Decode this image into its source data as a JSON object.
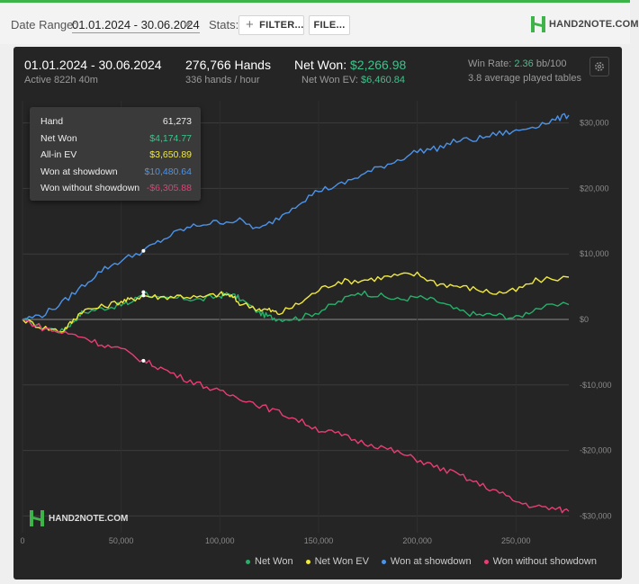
{
  "toolbar": {
    "date_range_label": "Date Range:",
    "date_range_value": "01.01.2024 - 30.06.2024",
    "stats_label": "Stats:",
    "filter_label": "FILTER...",
    "file_label": "FILE...",
    "brand_text": "HAND2NOTE.COM"
  },
  "header": {
    "date": "01.01.2024 - 30.06.2024",
    "active": "Active 822h 40m",
    "hands": "276,766 Hands",
    "hands_per_hour": "336 hands / hour",
    "net_won_label": "Net Won:",
    "net_won_value": "$2,266.98",
    "net_won_ev_label": "Net Won  EV:",
    "net_won_ev_value": "$6,460.84",
    "win_rate_label": "Win Rate:",
    "win_rate_value": "2.36",
    "win_rate_unit": "bb/100",
    "tables": "3.8 average played tables"
  },
  "tooltip": {
    "rows": [
      {
        "label": "Hand",
        "value": "61,273",
        "color": "#eeeeee"
      },
      {
        "label": "Net Won",
        "value": "$4,174.77",
        "color": "#3cc48b"
      },
      {
        "label": "All-in EV",
        "value": "$3,650.89",
        "color": "#f2ea3c"
      },
      {
        "label": "Won at showdown",
        "value": "$10,480.64",
        "color": "#4c93ea"
      },
      {
        "label": "Won without showdown",
        "value": "-$6,305.88",
        "color": "#ea3d74"
      }
    ]
  },
  "watermark": "HAND2NOTE.COM",
  "chart_data": {
    "type": "line",
    "x_label": "",
    "y_label": "",
    "xlim": [
      0,
      276766
    ],
    "ylim": [
      -32000,
      34000
    ],
    "x_ticks": [
      0,
      50000,
      100000,
      150000,
      200000,
      250000
    ],
    "x_tick_labels": [
      "0",
      "50,000",
      "100,000",
      "150,000",
      "200,000",
      "250,000"
    ],
    "y_ticks": [
      30000,
      20000,
      10000,
      0,
      -10000,
      -20000,
      -30000
    ],
    "y_tick_labels": [
      "$30,000",
      "$20,000",
      "$10,000",
      "$0",
      "-$10,000",
      "-$20,000",
      "-$30,000"
    ],
    "grid": true,
    "legend_position": "bottom",
    "marker_hand": 61273,
    "series": [
      {
        "name": "Net Won",
        "color": "#27b06a",
        "x": [
          0,
          10000,
          20000,
          25000,
          30000,
          40000,
          50000,
          55000,
          61273,
          70000,
          80000,
          90000,
          100000,
          105000,
          110000,
          120000,
          125000,
          130000,
          140000,
          150000,
          160000,
          170000,
          180000,
          190000,
          200000,
          210000,
          220000,
          230000,
          240000,
          250000,
          260000,
          276766
        ],
        "y": [
          0,
          -1200,
          -1800,
          -500,
          1000,
          1700,
          2200,
          2600,
          4175,
          3000,
          3300,
          3000,
          3600,
          3900,
          3200,
          1000,
          400,
          100,
          200,
          1200,
          2600,
          4200,
          3700,
          3000,
          3400,
          2800,
          1400,
          700,
          700,
          200,
          1700,
          2267
        ]
      },
      {
        "name": "Net Won  EV",
        "color": "#f2ea3c",
        "x": [
          0,
          10000,
          20000,
          25000,
          30000,
          40000,
          50000,
          55000,
          61273,
          70000,
          80000,
          90000,
          100000,
          105000,
          110000,
          120000,
          125000,
          130000,
          140000,
          150000,
          160000,
          170000,
          180000,
          190000,
          200000,
          210000,
          220000,
          230000,
          240000,
          250000,
          260000,
          276766
        ],
        "y": [
          0,
          -1200,
          -1800,
          -400,
          1300,
          1900,
          2800,
          3000,
          3651,
          3400,
          3600,
          3300,
          3900,
          3700,
          2500,
          1600,
          1400,
          900,
          2400,
          4500,
          5800,
          5900,
          6300,
          6700,
          6900,
          5500,
          5100,
          4600,
          4000,
          4400,
          5900,
          6461
        ]
      },
      {
        "name": "Won at showdown",
        "color": "#4c93ea",
        "x": [
          0,
          10000,
          20000,
          30000,
          40000,
          50000,
          61273,
          70000,
          80000,
          90000,
          100000,
          110000,
          120000,
          130000,
          140000,
          150000,
          160000,
          170000,
          180000,
          190000,
          200000,
          210000,
          220000,
          230000,
          240000,
          250000,
          260000,
          270000,
          276766
        ],
        "y": [
          0,
          700,
          2500,
          5000,
          7500,
          9000,
          10481,
          12000,
          13600,
          14500,
          14900,
          15100,
          13700,
          15600,
          17800,
          19700,
          20400,
          21800,
          23100,
          24300,
          25700,
          26100,
          27300,
          27500,
          28300,
          28700,
          29600,
          30500,
          31200
        ]
      },
      {
        "name": "Won without showdown",
        "color": "#ea3d74",
        "x": [
          0,
          10000,
          20000,
          30000,
          40000,
          50000,
          61273,
          70000,
          80000,
          90000,
          100000,
          110000,
          120000,
          130000,
          140000,
          150000,
          160000,
          170000,
          180000,
          190000,
          200000,
          210000,
          220000,
          230000,
          240000,
          250000,
          260000,
          270000,
          276766
        ],
        "y": [
          0,
          -1300,
          -2000,
          -2600,
          -3800,
          -4600,
          -6306,
          -7400,
          -8800,
          -9900,
          -11100,
          -11900,
          -13100,
          -14200,
          -15400,
          -16800,
          -17500,
          -18600,
          -19300,
          -20300,
          -21400,
          -22600,
          -23600,
          -25000,
          -26200,
          -27800,
          -28600,
          -28900,
          -29300
        ]
      }
    ]
  }
}
